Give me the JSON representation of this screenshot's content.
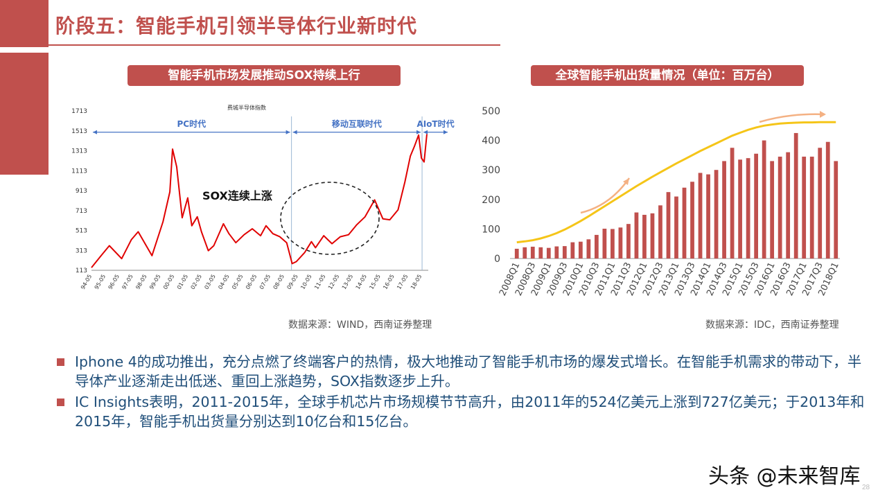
{
  "page": {
    "title": "阶段五：智能手机引领半导体行业新时代",
    "watermark": "头条 @未来智库",
    "page_number": "28"
  },
  "left_chart": {
    "label": "智能手机市场发展推动SOX持续上行",
    "source": "数据来源：WIND，西南证券整理"
  },
  "right_chart": {
    "label": "全球智能手机出货量情况（单位：百万台）",
    "source": "数据来源：IDC，西南证券整理"
  },
  "bullets": [
    "Iphone 4的成功推出，充分点燃了终端客户的热情，极大地推动了智能手机市场的爆发式增长。在智能手机需求的带动下，半导体产业逐渐走出低迷、重回上涨趋势，SOX指数逐步上升。",
    "IC Insights表明，2011-2015年，全球手机芯片市场规模节节高升，由2011年的524亿美元上涨到727亿美元；于2013年和2015年，智能手机出货量分别达到10亿台和15亿台。"
  ],
  "chart_data": [
    {
      "type": "line",
      "title": "费城半导体指数",
      "annotation": "SOX连续上涨",
      "eras": [
        "PC时代",
        "移动互联时代",
        "AIoT时代"
      ],
      "era_boundaries": [
        "08-11",
        "18-05"
      ],
      "y_ticks": [
        113,
        313,
        513,
        713,
        913,
        1113,
        1313,
        1513,
        1713
      ],
      "ylim": [
        113,
        1713
      ],
      "x_ticks": [
        "94-05",
        "95-05",
        "96-05",
        "97-05",
        "98-05",
        "99-05",
        "00-05",
        "01-05",
        "02-05",
        "03-05",
        "04-05",
        "05-05",
        "06-05",
        "07-05",
        "08-05",
        "09-05",
        "10-05",
        "11-05",
        "12-05",
        "13-05",
        "14-05",
        "15-05",
        "16-05",
        "17-05",
        "18-05"
      ],
      "series": [
        {
          "x": [
            1994.3,
            1995.0,
            1995.6,
            1996.5,
            1997.2,
            1997.7,
            1998.7,
            1999.5,
            2000.0,
            2000.2,
            2000.5,
            2000.9,
            2001.3,
            2001.6,
            2002.0,
            2002.3,
            2002.8,
            2003.2,
            2003.9,
            2004.3,
            2004.8,
            2005.4,
            2006.0,
            2006.6,
            2007.0,
            2007.5,
            2008.0,
            2008.5,
            2008.9,
            2009.2,
            2009.8,
            2010.3,
            2010.6,
            2011.2,
            2011.8,
            2012.4,
            2013.0,
            2013.6,
            2014.2,
            2014.9,
            2015.5,
            2016.0,
            2016.6,
            2017.1,
            2017.5,
            2017.8,
            2018.1,
            2018.3,
            2018.5,
            2018.7
          ],
          "values": [
            140,
            260,
            360,
            230,
            420,
            500,
            260,
            600,
            900,
            1330,
            1150,
            640,
            840,
            560,
            650,
            500,
            310,
            360,
            580,
            480,
            390,
            470,
            530,
            460,
            560,
            480,
            450,
            390,
            180,
            200,
            290,
            400,
            340,
            460,
            380,
            450,
            470,
            570,
            650,
            820,
            630,
            620,
            720,
            1000,
            1260,
            1360,
            1470,
            1240,
            1200,
            1480
          ]
        }
      ]
    },
    {
      "type": "bar",
      "title": "",
      "ylim": [
        0,
        500
      ],
      "y_ticks": [
        0,
        100,
        200,
        300,
        400,
        500
      ],
      "categories": [
        "2008Q1",
        "2008Q2",
        "2008Q3",
        "2008Q4",
        "2009Q1",
        "2009Q2",
        "2009Q3",
        "2009Q4",
        "2010Q1",
        "2010Q2",
        "2010Q3",
        "2010Q4",
        "2011Q1",
        "2011Q2",
        "2011Q3",
        "2011Q4",
        "2012Q1",
        "2012Q2",
        "2012Q3",
        "2012Q4",
        "2013Q1",
        "2013Q2",
        "2013Q3",
        "2013Q4",
        "2014Q1",
        "2014Q2",
        "2014Q3",
        "2014Q4",
        "2015Q1",
        "2015Q2",
        "2015Q3",
        "2015Q4",
        "2016Q1",
        "2016Q2",
        "2016Q3",
        "2016Q4",
        "2017Q1",
        "2017Q2",
        "2017Q3",
        "2017Q4",
        "2018Q1"
      ],
      "x_tick_labels": [
        "2008Q1",
        "2008Q3",
        "2009Q1",
        "2009Q3",
        "2010Q1",
        "2010Q3",
        "2011Q1",
        "2011Q3",
        "2012Q1",
        "2012Q3",
        "2013Q1",
        "2013Q3",
        "2014Q1",
        "2014Q3",
        "2015Q1",
        "2015Q3",
        "2016Q1",
        "2016Q3",
        "2017Q1",
        "2017Q3",
        "2018Q1"
      ],
      "values": [
        33,
        38,
        40,
        38,
        36,
        41,
        42,
        55,
        57,
        65,
        80,
        101,
        100,
        105,
        117,
        156,
        148,
        153,
        180,
        225,
        210,
        240,
        260,
        290,
        285,
        300,
        330,
        375,
        335,
        340,
        355,
        400,
        330,
        345,
        360,
        425,
        345,
        345,
        375,
        395,
        330
      ],
      "trend_line": [
        55,
        58,
        62,
        68,
        76,
        86,
        98,
        112,
        127,
        143,
        160,
        177,
        194,
        211,
        228,
        245,
        261,
        277,
        292,
        307,
        322,
        336,
        350,
        364,
        377,
        390,
        403,
        416,
        426,
        436,
        444,
        450,
        454,
        457,
        459,
        460,
        461,
        461,
        462,
        462,
        462
      ],
      "colors": {
        "bars": "#c0504d",
        "trend": "#f5c518",
        "arrows": "#f4b183"
      }
    }
  ]
}
